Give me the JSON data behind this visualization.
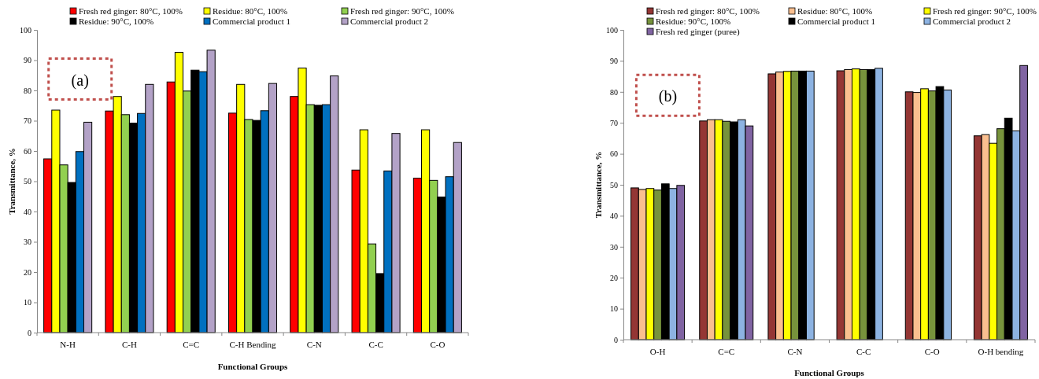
{
  "chart_data": [
    {
      "type": "bar",
      "xlabel": "Functional Groups",
      "ylabel": "Transmittance, %",
      "annotations": [
        "(a)"
      ],
      "categories": [
        "N-H",
        "C-H",
        "C=C",
        "C-H Bending",
        "C-N",
        "C-C",
        "C-O"
      ],
      "ylim": [
        0,
        100
      ],
      "yticks": [
        0,
        10,
        20,
        30,
        40,
        50,
        60,
        70,
        80,
        90,
        100
      ],
      "grid": false,
      "legend": "top",
      "series": [
        {
          "name": "Fresh red ginger: 80°C, 100%",
          "color": "#ff0000",
          "values": [
            57.4,
            73.2,
            82.8,
            72.5,
            78,
            53.7,
            51
          ]
        },
        {
          "name": "Residue: 80°C, 100%",
          "color": "#ffff00",
          "values": [
            73.5,
            78,
            92.6,
            82,
            87.4,
            67,
            67
          ]
        },
        {
          "name": "Fresh red ginger: 90°C, 100%",
          "color": "#92d050",
          "values": [
            55.4,
            72,
            79.8,
            70.4,
            75.3,
            29.3,
            50.3
          ]
        },
        {
          "name": "Residue: 90°C, 100%",
          "color": "#000000",
          "values": [
            49.6,
            69.2,
            86.7,
            70.1,
            75.1,
            19.5,
            44.8
          ]
        },
        {
          "name": "Commercial product 1",
          "color": "#0070c0",
          "values": [
            59.8,
            72.4,
            86.2,
            73.3,
            75.3,
            53.4,
            51.5
          ]
        },
        {
          "name": "Commercial product 2",
          "color": "#b3a2c7",
          "values": [
            69.5,
            82,
            93.3,
            82.3,
            84.8,
            65.8,
            62.8
          ]
        }
      ]
    },
    {
      "type": "bar",
      "xlabel": "Functional Groups",
      "ylabel": "Transmittance, %",
      "annotations": [
        "(b)"
      ],
      "categories": [
        "O-H",
        "C=C",
        "C-N",
        "C-C",
        "C-O",
        "O-H bending"
      ],
      "ylim": [
        0,
        100
      ],
      "yticks": [
        0,
        10,
        20,
        30,
        40,
        50,
        60,
        70,
        80,
        90,
        100
      ],
      "grid": false,
      "legend": "top",
      "series": [
        {
          "name": "Fresh red ginger: 80°C, 100%",
          "color": "#943634",
          "values": [
            49,
            70.6,
            85.8,
            86.8,
            80,
            65.8
          ]
        },
        {
          "name": "Residue: 80°C, 100%",
          "color": "#fabf8f",
          "values": [
            48.5,
            71,
            86.4,
            87.2,
            79.8,
            66.2
          ]
        },
        {
          "name": "Fresh red ginger: 90°C, 100%",
          "color": "#ffff00",
          "values": [
            48.8,
            71,
            86.6,
            87.4,
            81,
            63.4
          ]
        },
        {
          "name": "Residue: 90°C, 100%",
          "color": "#77933c",
          "values": [
            48.3,
            70.5,
            86.7,
            87.2,
            80.3,
            68.1
          ]
        },
        {
          "name": "Commercial product 1",
          "color": "#000000",
          "values": [
            50.3,
            70.3,
            86.7,
            87.2,
            81.7,
            71.5
          ]
        },
        {
          "name": "Commercial product 2",
          "color": "#8db3e2",
          "values": [
            48.8,
            71,
            86.7,
            87.6,
            80.6,
            67.4
          ]
        },
        {
          "name": "Fresh red ginger (puree)",
          "color": "#8064a2",
          "values": [
            49.8,
            69,
            null,
            null,
            null,
            88.5
          ]
        }
      ]
    }
  ]
}
